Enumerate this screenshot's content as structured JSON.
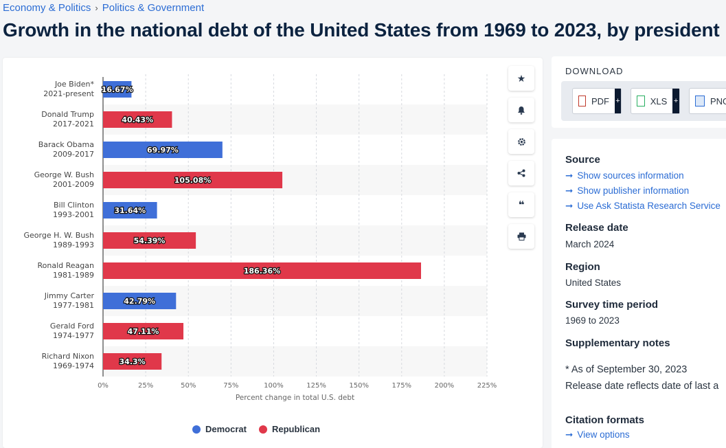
{
  "breadcrumb": {
    "item1": "Economy & Politics",
    "sep": "›",
    "item2": "Politics & Government"
  },
  "title": "Growth in the national debt of the United States from 1969 to 2023, by president",
  "tools": [
    "star-icon",
    "bell-icon",
    "gear-icon",
    "share-icon",
    "quote-icon",
    "print-icon"
  ],
  "download": {
    "title": "DOWNLOAD",
    "pdf": "PDF",
    "xls": "XLS",
    "png": "PNG",
    "plus": "+"
  },
  "info": {
    "source_title": "Source",
    "links": [
      "Show sources information",
      "Show publisher information",
      "Use Ask Statista Research Service"
    ],
    "release_title": "Release date",
    "release_value": "March 2024",
    "region_title": "Region",
    "region_value": "United States",
    "survey_title": "Survey time period",
    "survey_value": "1969 to 2023",
    "notes_title": "Supplementary notes",
    "note1": "* As of September 30, 2023",
    "note2": "Release date reflects date of last a",
    "citation_title": "Citation formats",
    "citation_link": "View options"
  },
  "colors": {
    "democrat": "#3f6fd8",
    "republican": "#e0384a"
  },
  "chart_data": {
    "type": "bar",
    "orientation": "horizontal",
    "xlabel": "Percent change in total U.S. debt",
    "xlim": [
      0,
      225
    ],
    "xticks": [
      "0%",
      "25%",
      "50%",
      "75%",
      "100%",
      "125%",
      "150%",
      "175%",
      "200%",
      "225%"
    ],
    "legend": [
      "Democrat",
      "Republican"
    ],
    "legend_position": "bottom",
    "categories": [
      {
        "name": "Joe Biden*",
        "years": "2021-present",
        "value": 16.67,
        "label": "16.67%",
        "party": "Democrat"
      },
      {
        "name": "Donald Trump",
        "years": "2017-2021",
        "value": 40.43,
        "label": "40.43%",
        "party": "Republican"
      },
      {
        "name": "Barack Obama",
        "years": "2009-2017",
        "value": 69.97,
        "label": "69.97%",
        "party": "Democrat"
      },
      {
        "name": "George W. Bush",
        "years": "2001-2009",
        "value": 105.08,
        "label": "105.08%",
        "party": "Republican"
      },
      {
        "name": "Bill Clinton",
        "years": "1993-2001",
        "value": 31.64,
        "label": "31.64%",
        "party": "Democrat"
      },
      {
        "name": "George H. W. Bush",
        "years": "1989-1993",
        "value": 54.39,
        "label": "54.39%",
        "party": "Republican"
      },
      {
        "name": "Ronald Reagan",
        "years": "1981-1989",
        "value": 186.36,
        "label": "186.36%",
        "party": "Republican"
      },
      {
        "name": "Jimmy Carter",
        "years": "1977-1981",
        "value": 42.79,
        "label": "42.79%",
        "party": "Democrat"
      },
      {
        "name": "Gerald Ford",
        "years": "1974-1977",
        "value": 47.11,
        "label": "47.11%",
        "party": "Republican"
      },
      {
        "name": "Richard Nixon",
        "years": "1969-1974",
        "value": 34.3,
        "label": "34.3%",
        "party": "Republican"
      }
    ]
  }
}
